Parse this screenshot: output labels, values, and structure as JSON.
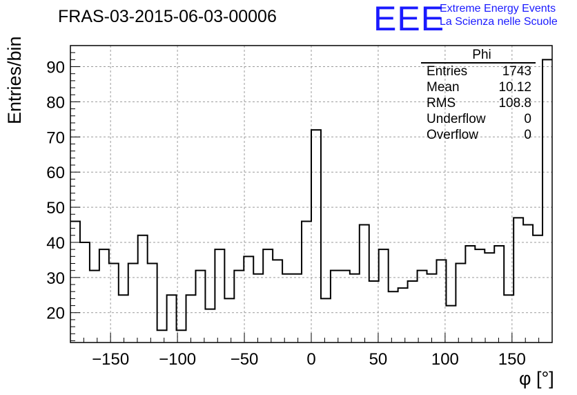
{
  "title": "FRAS-03-2015-06-03-00006",
  "logo": {
    "mark": "EEE",
    "line1": "Extreme Energy Events",
    "line2": "La Scienza nelle Scuole",
    "color": "#1a1aff"
  },
  "stats_box": {
    "title": "Phi",
    "rows": [
      {
        "label": "Entries",
        "value": "1743"
      },
      {
        "label": "Mean",
        "value": "10.12"
      },
      {
        "label": "RMS",
        "value": "108.8"
      },
      {
        "label": "Underflow",
        "value": "0"
      },
      {
        "label": "Overflow",
        "value": "0"
      }
    ]
  },
  "chart_data": {
    "type": "bar",
    "style": "step-histogram",
    "xlabel": "φ [°]",
    "ylabel": "Entries/bin",
    "xlim": [
      -180,
      180
    ],
    "ylim": [
      11.5,
      96
    ],
    "grid": true,
    "bin_width": 7.2,
    "bin_edges_start": -180,
    "values": [
      46,
      40,
      32,
      38,
      34,
      25,
      34,
      42,
      34,
      15,
      25,
      15,
      25,
      32,
      21,
      38,
      24,
      32,
      36,
      31,
      38,
      35,
      31,
      31,
      46,
      72,
      24,
      32,
      32,
      31,
      45,
      29,
      38,
      26,
      27,
      29,
      32,
      31,
      35,
      22,
      34,
      39,
      38,
      37,
      39,
      25,
      47,
      45,
      42,
      92
    ],
    "xticks": [
      -150,
      -100,
      -50,
      0,
      50,
      100,
      150
    ],
    "xtick_labels": [
      "−150",
      "−100",
      "−50",
      "0",
      "50",
      "100",
      "150"
    ],
    "yticks": [
      20,
      30,
      40,
      50,
      60,
      70,
      80,
      90
    ],
    "ytick_labels": [
      "20",
      "30",
      "40",
      "50",
      "60",
      "70",
      "80",
      "90"
    ]
  }
}
